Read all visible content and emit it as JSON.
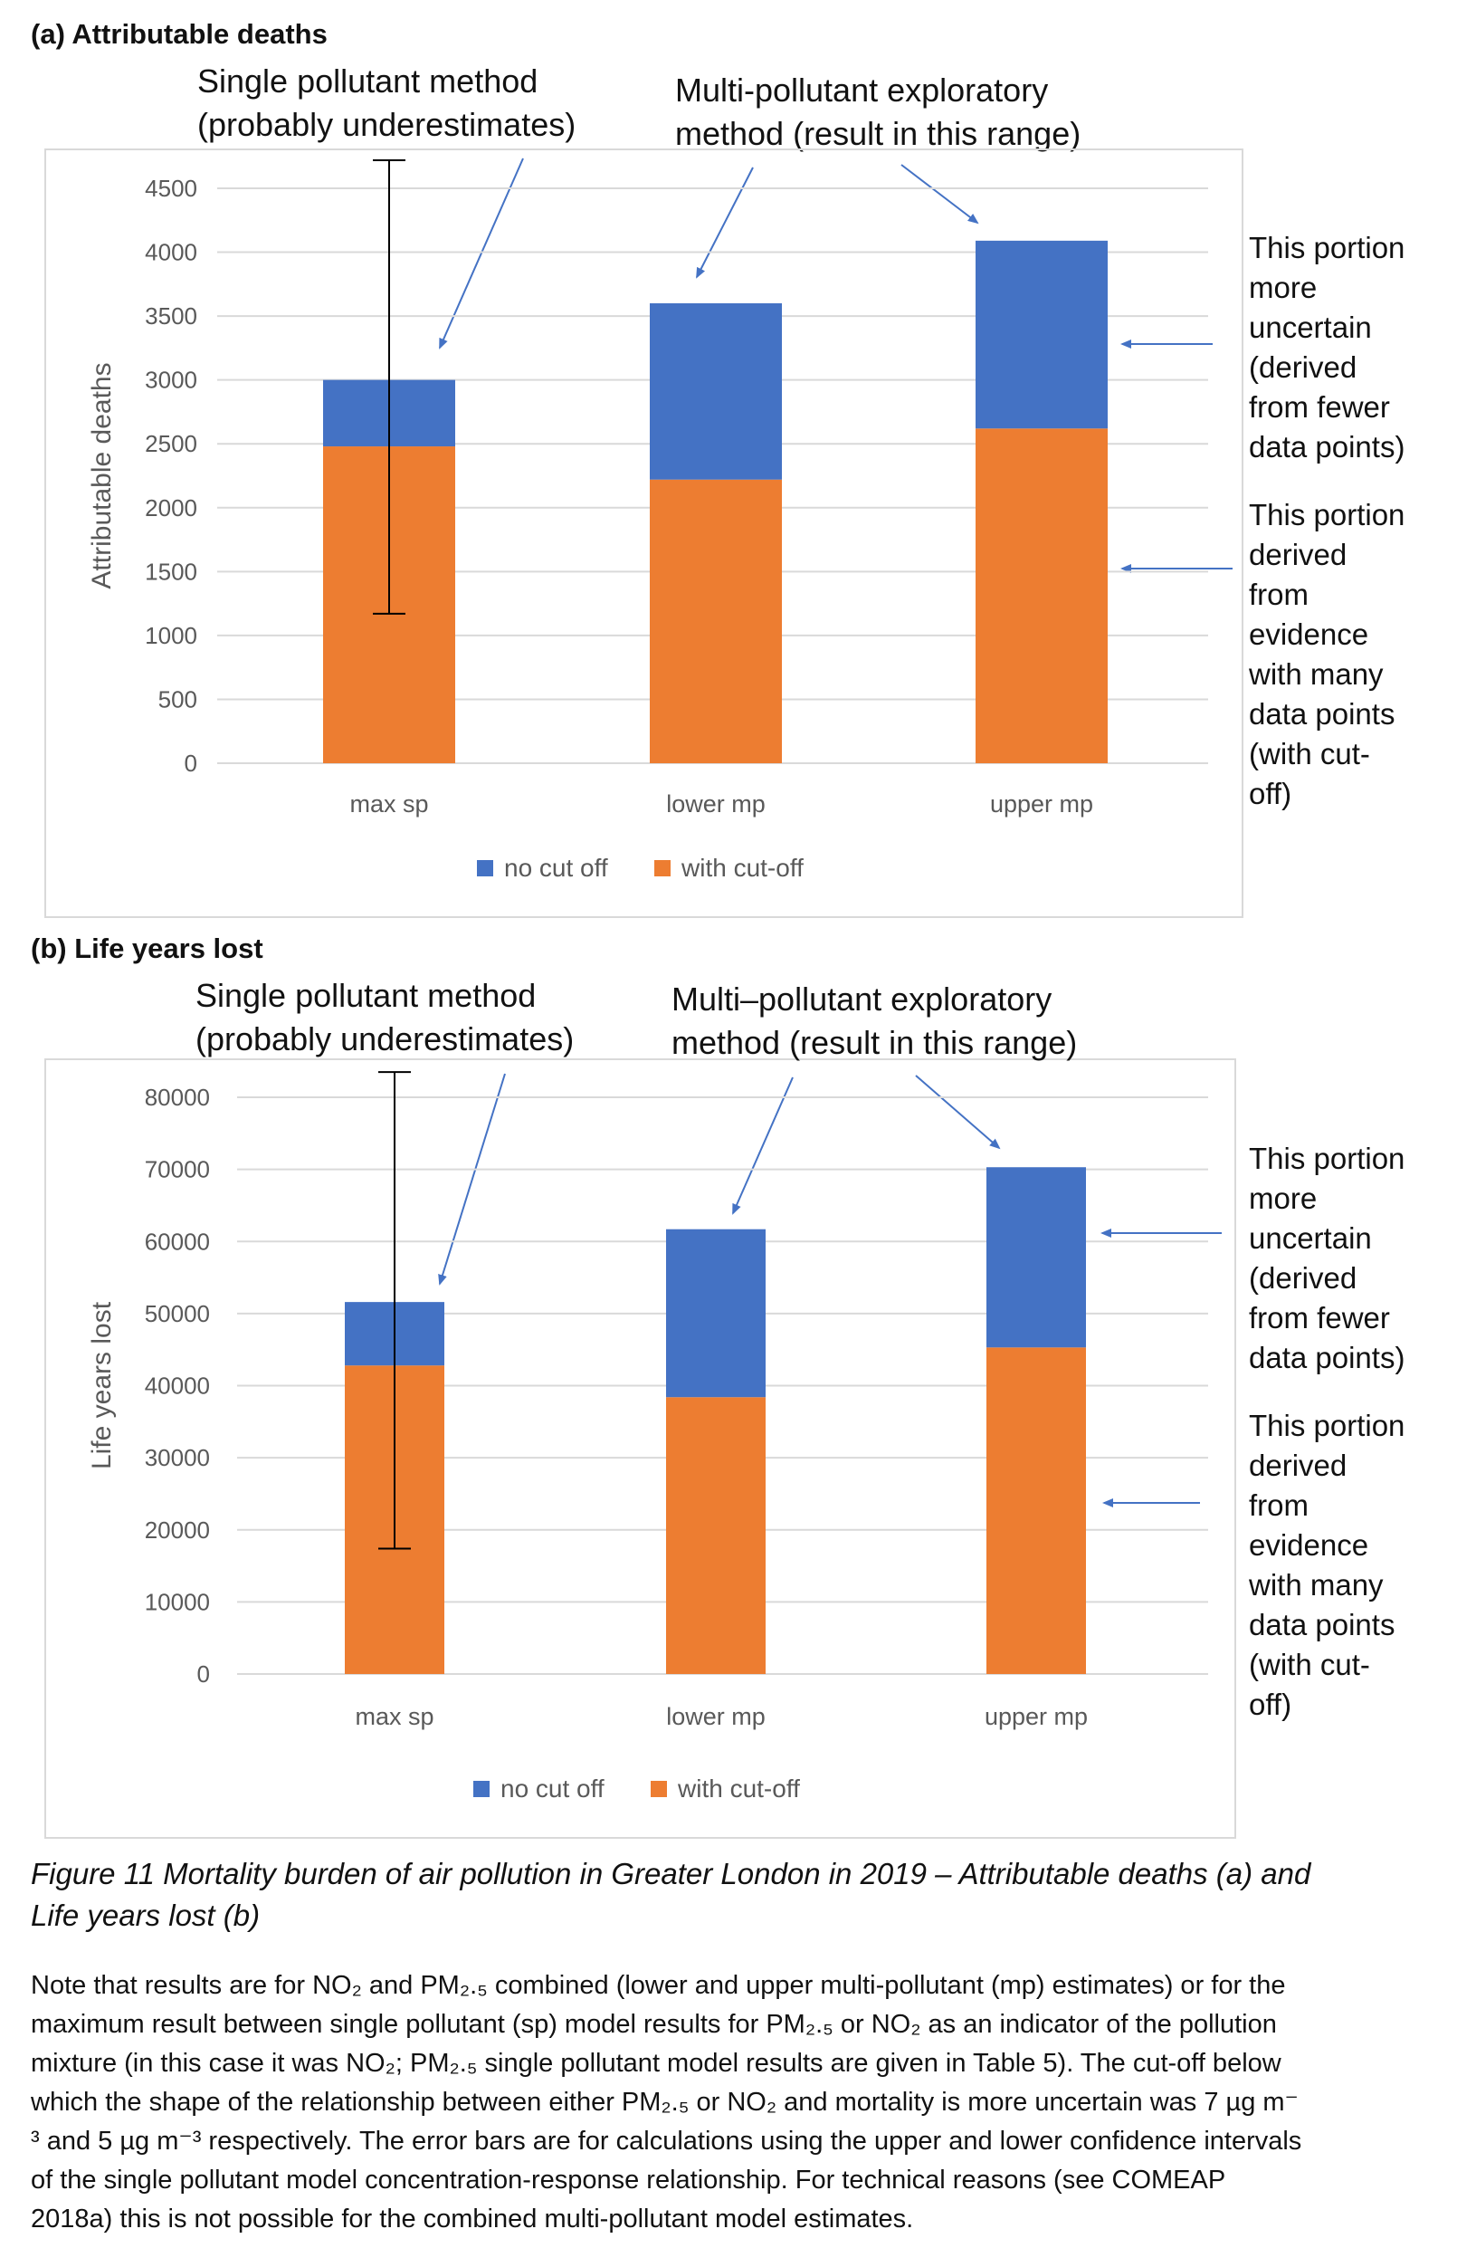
{
  "panel_a": {
    "title": "(a) Attributable deaths",
    "sp_label": [
      "Single pollutant method",
      "(probably underestimates)"
    ],
    "mp_label": [
      "Multi-pollutant exploratory",
      "method (result in this range)"
    ],
    "side_top": [
      "This portion",
      "more",
      "uncertain",
      "(derived",
      "from fewer",
      "data points)"
    ],
    "side_bottom": [
      "This portion",
      "derived",
      "from",
      "evidence",
      "with many",
      "data points",
      "(with cut-",
      "off)"
    ]
  },
  "panel_b": {
    "title": "(b) Life years lost",
    "sp_label": [
      "Single pollutant method",
      "(probably underestimates)"
    ],
    "mp_label": [
      "Multi–pollutant exploratory",
      "method (result in this range)"
    ],
    "side_top": [
      "This portion",
      "more",
      "uncertain",
      "(derived",
      "from fewer",
      "data points)"
    ],
    "side_bottom": [
      "This portion",
      "derived",
      "from",
      "evidence",
      "with many",
      "data points",
      "(with cut-",
      "off)"
    ]
  },
  "chart_data": [
    {
      "type": "bar",
      "stacked": true,
      "title": "(a) Attributable deaths",
      "categories": [
        "max sp",
        "lower mp",
        "upper mp"
      ],
      "ylabel": "Attributable deaths",
      "ylim": [
        0,
        4500
      ],
      "yticks": [
        "0",
        "500",
        "1000",
        "1500",
        "2000",
        "2500",
        "3000",
        "3500",
        "4000",
        "4500"
      ],
      "series": [
        {
          "name": "with cut-off",
          "color": "#ED7D31",
          "values": [
            2480,
            2220,
            2620
          ]
        },
        {
          "name": "no cut off",
          "color": "#4472C4",
          "values": [
            520,
            1380,
            1470
          ]
        }
      ],
      "error_bar": {
        "category": "max sp",
        "low": 1170,
        "high": 4720
      },
      "legend": "bottom",
      "grid": true
    },
    {
      "type": "bar",
      "stacked": true,
      "title": "(b) Life years lost",
      "categories": [
        "max sp",
        "lower mp",
        "upper mp"
      ],
      "ylabel": "Life years lost",
      "ylim": [
        0,
        80000
      ],
      "yticks": [
        "0",
        "10000",
        "20000",
        "30000",
        "40000",
        "50000",
        "60000",
        "70000",
        "80000"
      ],
      "series": [
        {
          "name": "with cut-off",
          "color": "#ED7D31",
          "values": [
            42800,
            38400,
            45300
          ]
        },
        {
          "name": "no cut off",
          "color": "#4472C4",
          "values": [
            8800,
            23300,
            25000
          ]
        }
      ],
      "error_bar": {
        "category": "max sp",
        "low": 17400,
        "high": 83500
      },
      "legend": "bottom",
      "grid": true
    }
  ],
  "caption": [
    "Figure 11 Mortality burden of air pollution in Greater London in 2019 – Attributable deaths (a) and",
    "Life years lost (b)"
  ],
  "note": [
    "Note that results are for NO₂ and PM₂.₅ combined (lower and upper multi-pollutant (mp) estimates) or for the",
    "maximum result between single pollutant (sp) model results for PM₂.₅ or NO₂ as an indicator of the pollution",
    "mixture (in this case it was NO₂; PM₂.₅ single pollutant model results are given in Table 5).  The cut-off below",
    "which the shape of the relationship between either PM₂.₅ or NO₂ and mortality is more uncertain was 7 µg m⁻",
    "³ and 5 µg m⁻³ respectively.  The error bars are for calculations using the upper and lower confidence intervals",
    "of the single pollutant model concentration-response relationship.   For technical reasons (see COMEAP",
    "2018a) this is not possible for the combined multi-pollutant model estimates."
  ]
}
